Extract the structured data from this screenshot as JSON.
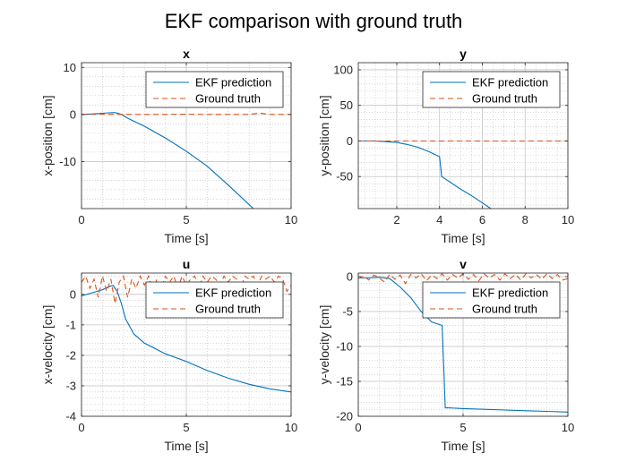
{
  "figure": {
    "title": "EKF comparison with ground truth"
  },
  "legend": {
    "entries": [
      "EKF prediction",
      "Ground truth"
    ]
  },
  "colors": {
    "ekf": "#0072BD",
    "truth": "#D95319",
    "axes": "#262626",
    "grid": "#b0b0b0"
  },
  "chart_data": [
    {
      "type": "line",
      "title": "x",
      "xlabel": "Time [s]",
      "ylabel": "x-position [cm]",
      "xlim": [
        0,
        10
      ],
      "ylim": [
        -20,
        11
      ],
      "xticks": [
        0,
        5,
        10
      ],
      "yticks": [
        10,
        0,
        -10
      ],
      "legend_position": "top-right",
      "series": [
        {
          "name": "EKF prediction",
          "style": "solid",
          "x": [
            0,
            0.5,
            1.0,
            1.3,
            1.6,
            1.9,
            2.2,
            3,
            4,
            5,
            6,
            7,
            8.2
          ],
          "y": [
            0,
            0.1,
            0.25,
            0.35,
            0.4,
            0,
            -0.8,
            -2.5,
            -5,
            -7.8,
            -11,
            -15,
            -20
          ]
        },
        {
          "name": "Ground truth",
          "style": "dashed",
          "x": [
            0,
            1,
            2,
            3,
            4,
            5,
            6,
            7,
            8,
            8.5,
            9,
            10
          ],
          "y": [
            0,
            0.05,
            0,
            0,
            0,
            0.05,
            0,
            0,
            0,
            0.3,
            0,
            0
          ]
        }
      ]
    },
    {
      "type": "line",
      "title": "y",
      "xlabel": "Time [s]",
      "ylabel": "y-position [cm]",
      "xlim": [
        0.2,
        10
      ],
      "ylim": [
        -95,
        110
      ],
      "xticks": [
        2,
        4,
        6,
        8,
        10
      ],
      "yticks": [
        100,
        50,
        0,
        -50
      ],
      "legend_position": "top-right",
      "series": [
        {
          "name": "EKF prediction",
          "style": "solid",
          "x": [
            0.2,
            1,
            1.5,
            2,
            2.5,
            3,
            3.5,
            4.0,
            4.1,
            4.5,
            5,
            5.5,
            6,
            6.4
          ],
          "y": [
            0,
            0,
            -1,
            -2,
            -5,
            -9,
            -15,
            -22,
            -50,
            -58,
            -68,
            -77,
            -87,
            -95
          ]
        },
        {
          "name": "Ground truth",
          "style": "dashed",
          "x": [
            0.2,
            2,
            4,
            6,
            8,
            10
          ],
          "y": [
            0,
            0,
            0,
            0,
            0,
            0
          ]
        }
      ]
    },
    {
      "type": "line",
      "title": "u",
      "xlabel": "Time [s]",
      "ylabel": "x-velocity [cm]",
      "xlim": [
        0,
        10
      ],
      "ylim": [
        -4,
        0.7
      ],
      "xticks": [
        0,
        5,
        10
      ],
      "yticks": [
        0,
        -1,
        -2,
        -3,
        -4
      ],
      "legend_position": "top-right",
      "series": [
        {
          "name": "EKF prediction",
          "style": "solid",
          "x": [
            0,
            0.5,
            1.0,
            1.3,
            1.5,
            1.7,
            1.9,
            2.1,
            2.5,
            3,
            4,
            5,
            6,
            7,
            8,
            9,
            10
          ],
          "y": [
            -0.05,
            0.05,
            0.15,
            0.25,
            0.3,
            0.1,
            -0.3,
            -0.8,
            -1.3,
            -1.6,
            -1.95,
            -2.2,
            -2.5,
            -2.75,
            -2.95,
            -3.1,
            -3.2
          ]
        },
        {
          "name": "Ground truth",
          "style": "dashed",
          "x": [
            0,
            0.2,
            0.4,
            0.6,
            0.8,
            1.0,
            1.2,
            1.4,
            1.6,
            1.8,
            2.0,
            2.2,
            2.4,
            2.6,
            2.8,
            3.0,
            3.2,
            3.4,
            3.6,
            3.8,
            4.0,
            4.2,
            4.4,
            4.6,
            4.8,
            5.0,
            5.2,
            5.4,
            5.6,
            5.8,
            6.0,
            6.2,
            6.4,
            6.6,
            6.8,
            7.0,
            7.2,
            7.4,
            7.6,
            7.8,
            8.0,
            8.2,
            8.4,
            8.6,
            8.8,
            9.0,
            9.2,
            9.4,
            9.6,
            9.8,
            10.0
          ],
          "y": [
            0.4,
            0.6,
            0.2,
            0.5,
            -0.1,
            0.6,
            0.1,
            0.5,
            -0.3,
            0.4,
            0.6,
            -0.1,
            0.5,
            0.2,
            0.6,
            0.3,
            0.6,
            0.1,
            0.5,
            0.2,
            0.6,
            0.4,
            0.6,
            0.2,
            0.6,
            0.3,
            0.5,
            0.6,
            0.2,
            0.6,
            0.4,
            0.6,
            0.5,
            0.3,
            0.6,
            0.4,
            0.6,
            0.5,
            0.2,
            0.6,
            0.5,
            0.6,
            0.3,
            0.6,
            0.5,
            0.6,
            0.4,
            0.6,
            0.5,
            0.1,
            0.3
          ]
        }
      ]
    },
    {
      "type": "line",
      "title": "v",
      "xlabel": "Time [s]",
      "ylabel": "y-velocity [cm]",
      "xlim": [
        0,
        10
      ],
      "ylim": [
        -20,
        0.5
      ],
      "xticks": [
        0,
        5,
        10
      ],
      "yticks": [
        0,
        -5,
        -10,
        -15,
        -20
      ],
      "legend_position": "top-right",
      "series": [
        {
          "name": "EKF prediction",
          "style": "solid",
          "x": [
            0,
            0.5,
            1.0,
            1.5,
            2.0,
            2.5,
            3.0,
            3.5,
            4.0,
            4.15,
            4.3,
            5,
            6,
            7,
            8,
            9,
            10
          ],
          "y": [
            -0.2,
            -0.2,
            -0.1,
            -0.3,
            -1.5,
            -3,
            -5,
            -6.5,
            -7,
            -18.8,
            -18.8,
            -18.9,
            -19,
            -19.1,
            -19.2,
            -19.3,
            -19.4
          ]
        },
        {
          "name": "Ground truth",
          "style": "dashed",
          "x": [
            0,
            0.25,
            0.5,
            0.75,
            1.0,
            1.25,
            1.5,
            1.75,
            2.0,
            2.25,
            2.5,
            2.75,
            3.0,
            3.25,
            3.5,
            3.75,
            4.0,
            4.25,
            4.5,
            4.75,
            5.0,
            5.25,
            5.5,
            5.75,
            6.0,
            6.25,
            6.5,
            6.75,
            7.0,
            7.25,
            7.5,
            7.75,
            8.0,
            8.25,
            8.5,
            8.75,
            9.0,
            9.25,
            9.5,
            9.75,
            10.0
          ],
          "y": [
            -0.3,
            0.1,
            -0.5,
            0.2,
            -0.2,
            -0.8,
            0.3,
            -0.4,
            0.2,
            -1.0,
            0.3,
            -0.2,
            0.4,
            -0.6,
            0.2,
            -0.3,
            0.4,
            -0.5,
            0.3,
            -0.2,
            0.4,
            -0.4,
            0.3,
            -0.6,
            0.4,
            -0.2,
            0.3,
            -0.5,
            0.4,
            -0.3,
            0.3,
            -0.5,
            0.4,
            -0.2,
            0.3,
            -0.4,
            0.4,
            -0.3,
            0.3,
            -0.5,
            -0.3
          ]
        }
      ]
    }
  ]
}
